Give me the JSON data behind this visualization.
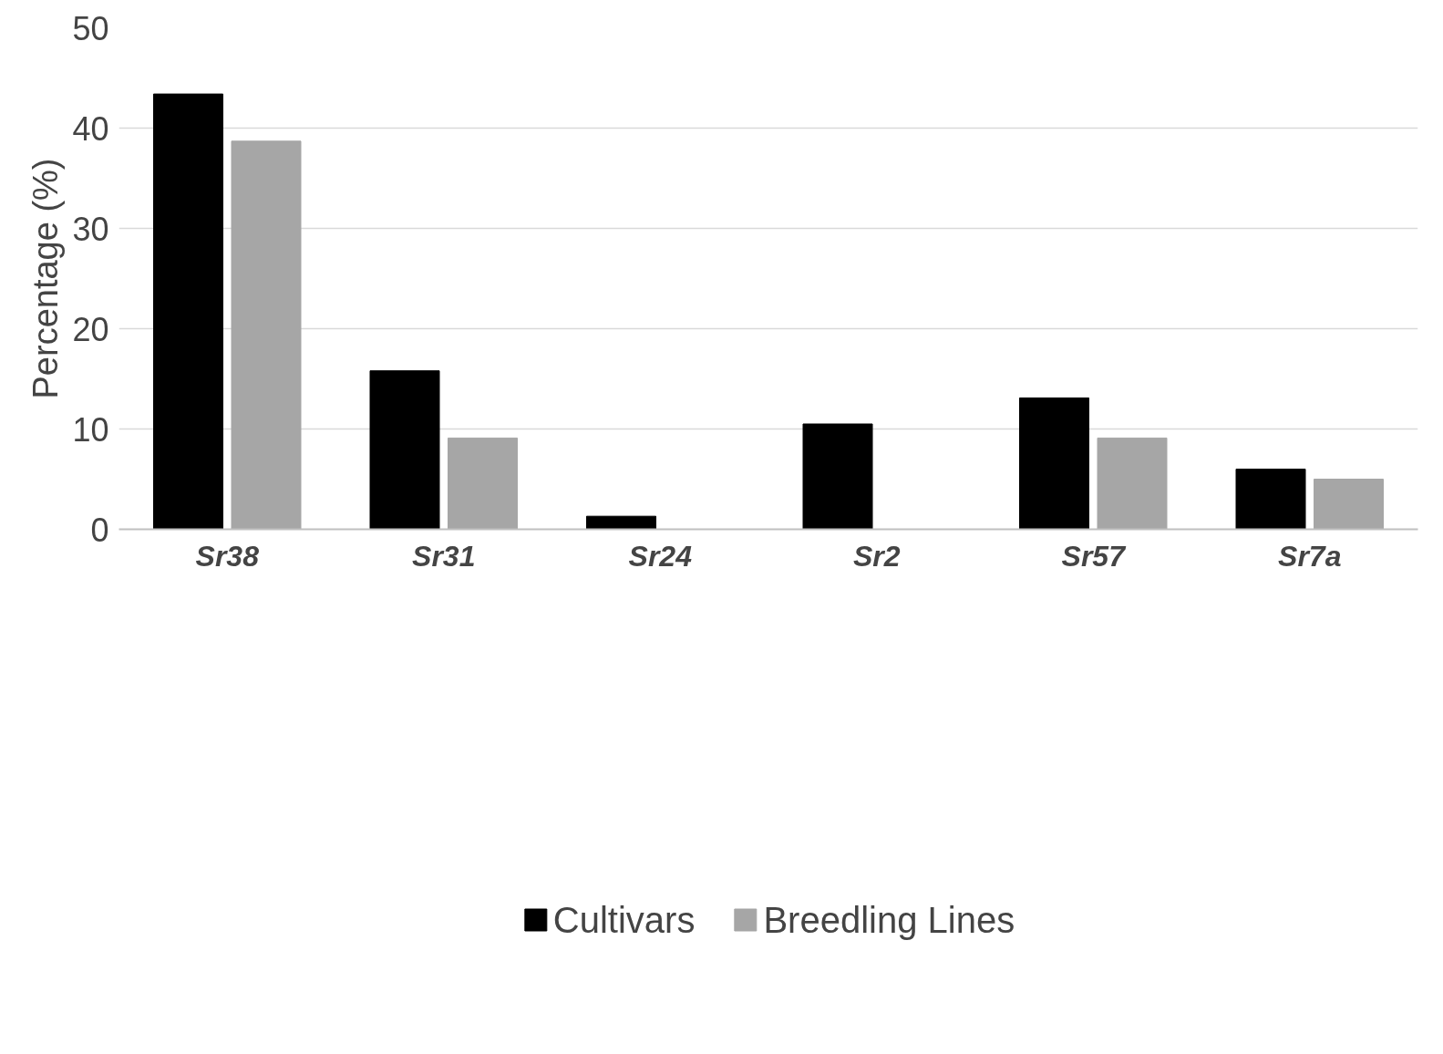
{
  "chart_data": {
    "type": "bar",
    "ylabel": "Percentage (%)",
    "categories": [
      "Sr38",
      "Sr31",
      "Sr24",
      "Sr2",
      "Sr57",
      "Sr7a"
    ],
    "series": [
      {
        "name": "Cultivars",
        "color": "#000000",
        "values": [
          43.4,
          15.8,
          1.3,
          10.5,
          13.1,
          6.0
        ]
      },
      {
        "name": "Breedling Lines",
        "color": "#a6a6a6",
        "values": [
          38.7,
          9.1,
          0,
          0,
          9.1,
          5.0
        ]
      }
    ],
    "ylim": [
      0,
      50
    ],
    "yticks": [
      0,
      10,
      20,
      30,
      40,
      50
    ],
    "grid": "y",
    "legend": "bottom"
  }
}
